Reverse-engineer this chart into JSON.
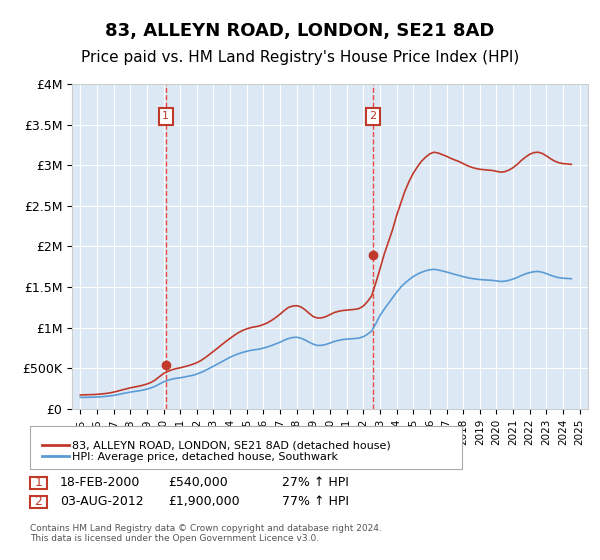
{
  "title": "83, ALLEYN ROAD, LONDON, SE21 8AD",
  "subtitle": "Price paid vs. HM Land Registry's House Price Index (HPI)",
  "title_fontsize": 13,
  "subtitle_fontsize": 11,
  "xlabel": "",
  "ylabel": "",
  "ylim": [
    0,
    4000000
  ],
  "xlim_start": 1995.0,
  "xlim_end": 2025.5,
  "background_color": "#ffffff",
  "plot_bg_color": "#dce9f5",
  "grid_color": "#ffffff",
  "red_line_color": "#c0392b",
  "blue_line_color": "#5b9bd5",
  "dashed_line_color": "#e74c3c",
  "ytick_labels": [
    "£0",
    "£500K",
    "£1M",
    "£1.5M",
    "£2M",
    "£2.5M",
    "£3M",
    "£3.5M",
    "£4M"
  ],
  "ytick_values": [
    0,
    500000,
    1000000,
    1500000,
    2000000,
    2500000,
    3000000,
    3500000,
    4000000
  ],
  "xtick_years": [
    1995,
    1996,
    1997,
    1998,
    1999,
    2000,
    2001,
    2002,
    2003,
    2004,
    2005,
    2006,
    2007,
    2008,
    2009,
    2010,
    2011,
    2012,
    2013,
    2014,
    2015,
    2016,
    2017,
    2018,
    2019,
    2020,
    2021,
    2022,
    2023,
    2024,
    2025
  ],
  "marker1_x": 2000.13,
  "marker1_y": 540000,
  "marker1_label": "1",
  "marker2_x": 2012.59,
  "marker2_y": 1900000,
  "marker2_label": "2",
  "legend_line1": "83, ALLEYN ROAD, LONDON, SE21 8AD (detached house)",
  "legend_line2": "HPI: Average price, detached house, Southwark",
  "ann1_index": "1",
  "ann1_date": "18-FEB-2000",
  "ann1_price": "£540,000",
  "ann1_hpi": "27% ↑ HPI",
  "ann2_index": "2",
  "ann2_date": "03-AUG-2012",
  "ann2_price": "£1,900,000",
  "ann2_hpi": "77% ↑ HPI",
  "footer": "Contains HM Land Registry data © Crown copyright and database right 2024.\nThis data is licensed under the Open Government Licence v3.0.",
  "red_hpi_data": {
    "years": [
      1995.0,
      1995.25,
      1995.5,
      1995.75,
      1996.0,
      1996.25,
      1996.5,
      1996.75,
      1997.0,
      1997.25,
      1997.5,
      1997.75,
      1998.0,
      1998.25,
      1998.5,
      1998.75,
      1999.0,
      1999.25,
      1999.5,
      1999.75,
      2000.0,
      2000.25,
      2000.5,
      2000.75,
      2001.0,
      2001.25,
      2001.5,
      2001.75,
      2002.0,
      2002.25,
      2002.5,
      2002.75,
      2003.0,
      2003.25,
      2003.5,
      2003.75,
      2004.0,
      2004.25,
      2004.5,
      2004.75,
      2005.0,
      2005.25,
      2005.5,
      2005.75,
      2006.0,
      2006.25,
      2006.5,
      2006.75,
      2007.0,
      2007.25,
      2007.5,
      2007.75,
      2008.0,
      2008.25,
      2008.5,
      2008.75,
      2009.0,
      2009.25,
      2009.5,
      2009.75,
      2010.0,
      2010.25,
      2010.5,
      2010.75,
      2011.0,
      2011.25,
      2011.5,
      2011.75,
      2012.0,
      2012.25,
      2012.5,
      2012.75,
      2013.0,
      2013.25,
      2013.5,
      2013.75,
      2014.0,
      2014.25,
      2014.5,
      2014.75,
      2015.0,
      2015.25,
      2015.5,
      2015.75,
      2016.0,
      2016.25,
      2016.5,
      2016.75,
      2017.0,
      2017.25,
      2017.5,
      2017.75,
      2018.0,
      2018.25,
      2018.5,
      2018.75,
      2019.0,
      2019.25,
      2019.5,
      2019.75,
      2020.0,
      2020.25,
      2020.5,
      2020.75,
      2021.0,
      2021.25,
      2021.5,
      2021.75,
      2022.0,
      2022.25,
      2022.5,
      2022.75,
      2023.0,
      2023.25,
      2023.5,
      2023.75,
      2024.0,
      2024.25,
      2024.5
    ],
    "values": [
      170000,
      172000,
      174000,
      175000,
      178000,
      182000,
      188000,
      195000,
      205000,
      218000,
      232000,
      245000,
      258000,
      268000,
      278000,
      290000,
      305000,
      325000,
      355000,
      395000,
      435000,
      460000,
      480000,
      495000,
      505000,
      518000,
      532000,
      548000,
      568000,
      595000,
      630000,
      668000,
      708000,
      748000,
      790000,
      830000,
      868000,
      905000,
      938000,
      965000,
      985000,
      1000000,
      1010000,
      1020000,
      1038000,
      1060000,
      1090000,
      1125000,
      1165000,
      1210000,
      1248000,
      1265000,
      1270000,
      1255000,
      1220000,
      1175000,
      1135000,
      1118000,
      1120000,
      1135000,
      1160000,
      1185000,
      1200000,
      1210000,
      1215000,
      1220000,
      1225000,
      1235000,
      1265000,
      1320000,
      1390000,
      1550000,
      1720000,
      1900000,
      2050000,
      2200000,
      2380000,
      2530000,
      2680000,
      2800000,
      2900000,
      2980000,
      3050000,
      3100000,
      3140000,
      3160000,
      3150000,
      3130000,
      3110000,
      3085000,
      3065000,
      3045000,
      3020000,
      2995000,
      2975000,
      2960000,
      2950000,
      2945000,
      2940000,
      2935000,
      2925000,
      2915000,
      2920000,
      2940000,
      2970000,
      3010000,
      3060000,
      3100000,
      3135000,
      3155000,
      3160000,
      3145000,
      3115000,
      3080000,
      3050000,
      3030000,
      3020000,
      3015000,
      3010000
    ]
  },
  "blue_hpi_data": {
    "years": [
      1995.0,
      1995.25,
      1995.5,
      1995.75,
      1996.0,
      1996.25,
      1996.5,
      1996.75,
      1997.0,
      1997.25,
      1997.5,
      1997.75,
      1998.0,
      1998.25,
      1998.5,
      1998.75,
      1999.0,
      1999.25,
      1999.5,
      1999.75,
      2000.0,
      2000.25,
      2000.5,
      2000.75,
      2001.0,
      2001.25,
      2001.5,
      2001.75,
      2002.0,
      2002.25,
      2002.5,
      2002.75,
      2003.0,
      2003.25,
      2003.5,
      2003.75,
      2004.0,
      2004.25,
      2004.5,
      2004.75,
      2005.0,
      2005.25,
      2005.5,
      2005.75,
      2006.0,
      2006.25,
      2006.5,
      2006.75,
      2007.0,
      2007.25,
      2007.5,
      2007.75,
      2008.0,
      2008.25,
      2008.5,
      2008.75,
      2009.0,
      2009.25,
      2009.5,
      2009.75,
      2010.0,
      2010.25,
      2010.5,
      2010.75,
      2011.0,
      2011.25,
      2011.5,
      2011.75,
      2012.0,
      2012.25,
      2012.5,
      2012.75,
      2013.0,
      2013.25,
      2013.5,
      2013.75,
      2014.0,
      2014.25,
      2014.5,
      2014.75,
      2015.0,
      2015.25,
      2015.5,
      2015.75,
      2016.0,
      2016.25,
      2016.5,
      2016.75,
      2017.0,
      2017.25,
      2017.5,
      2017.75,
      2018.0,
      2018.25,
      2018.5,
      2018.75,
      2019.0,
      2019.25,
      2019.5,
      2019.75,
      2020.0,
      2020.25,
      2020.5,
      2020.75,
      2021.0,
      2021.25,
      2021.5,
      2021.75,
      2022.0,
      2022.25,
      2022.5,
      2022.75,
      2023.0,
      2023.25,
      2023.5,
      2023.75,
      2024.0,
      2024.25,
      2024.5
    ],
    "values": [
      140000,
      141000,
      142000,
      143000,
      145000,
      148000,
      153000,
      158000,
      165000,
      175000,
      186000,
      196000,
      205000,
      213000,
      221000,
      230000,
      242000,
      258000,
      278000,
      305000,
      332000,
      350000,
      365000,
      375000,
      382000,
      392000,
      402000,
      412000,
      428000,
      448000,
      472000,
      498000,
      525000,
      552000,
      580000,
      608000,
      635000,
      658000,
      678000,
      695000,
      708000,
      720000,
      728000,
      735000,
      748000,
      762000,
      780000,
      800000,
      820000,
      845000,
      865000,
      878000,
      882000,
      870000,
      848000,
      820000,
      795000,
      780000,
      782000,
      792000,
      810000,
      828000,
      842000,
      852000,
      858000,
      862000,
      865000,
      872000,
      888000,
      918000,
      958000,
      1048000,
      1148000,
      1225000,
      1295000,
      1365000,
      1435000,
      1498000,
      1548000,
      1590000,
      1628000,
      1658000,
      1682000,
      1700000,
      1712000,
      1718000,
      1710000,
      1698000,
      1685000,
      1670000,
      1655000,
      1642000,
      1628000,
      1615000,
      1605000,
      1598000,
      1592000,
      1588000,
      1585000,
      1582000,
      1575000,
      1568000,
      1572000,
      1582000,
      1598000,
      1618000,
      1642000,
      1662000,
      1678000,
      1688000,
      1692000,
      1682000,
      1665000,
      1645000,
      1628000,
      1615000,
      1608000,
      1605000,
      1602000
    ]
  }
}
